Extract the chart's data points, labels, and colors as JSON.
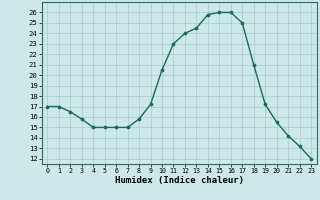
{
  "x": [
    0,
    1,
    2,
    3,
    4,
    5,
    6,
    7,
    8,
    9,
    10,
    11,
    12,
    13,
    14,
    15,
    16,
    17,
    18,
    19,
    20,
    21,
    22,
    23
  ],
  "y": [
    17,
    17,
    16.5,
    15.8,
    15,
    15,
    15,
    15,
    15.8,
    17.2,
    20.5,
    23,
    24,
    24.5,
    25.8,
    26,
    26,
    25,
    21,
    17.2,
    15.5,
    14.2,
    13.2,
    12
  ],
  "line_color": "#1a6b5a",
  "marker_color": "#1a6b5a",
  "bg_color": "#cce8e8",
  "grid_color": "#aacccc",
  "xlabel": "Humidex (Indice chaleur)",
  "ylim": [
    11.5,
    27
  ],
  "xlim": [
    -0.5,
    23.5
  ],
  "yticks": [
    12,
    13,
    14,
    15,
    16,
    17,
    18,
    19,
    20,
    21,
    22,
    23,
    24,
    25,
    26
  ],
  "xticks": [
    0,
    1,
    2,
    3,
    4,
    5,
    6,
    7,
    8,
    9,
    10,
    11,
    12,
    13,
    14,
    15,
    16,
    17,
    18,
    19,
    20,
    21,
    22,
    23
  ]
}
